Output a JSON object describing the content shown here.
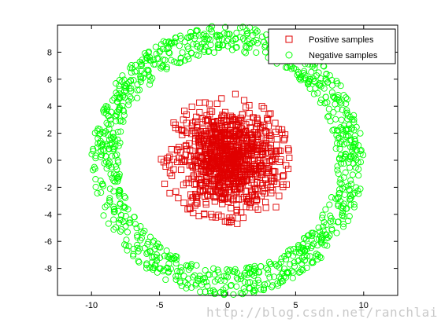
{
  "chart_data": {
    "type": "scatter",
    "title": "",
    "xlabel": "",
    "ylabel": "",
    "xlim": [
      -12.5,
      12.5
    ],
    "ylim": [
      -10,
      10
    ],
    "x_ticks": [
      -10,
      -5,
      0,
      5,
      10
    ],
    "y_ticks": [
      -8,
      -6,
      -4,
      -2,
      0,
      2,
      4,
      6,
      8
    ],
    "grid": false,
    "legend_position": "top-right",
    "series": [
      {
        "name": "Positive samples",
        "marker": "square",
        "color": "#ff0000",
        "distribution": "dense disc centered at origin, radius about 5",
        "center": [
          0,
          0
        ],
        "radius_max": 5,
        "count": 1000
      },
      {
        "name": "Negative samples",
        "marker": "circle",
        "color": "#00ff00",
        "distribution": "ring around origin, radius about 8 to 10",
        "center": [
          0,
          0
        ],
        "radius_min": 8,
        "radius_max": 10,
        "count": 1000
      }
    ]
  },
  "watermark": "http://blog.csdn.net/ranchlai"
}
